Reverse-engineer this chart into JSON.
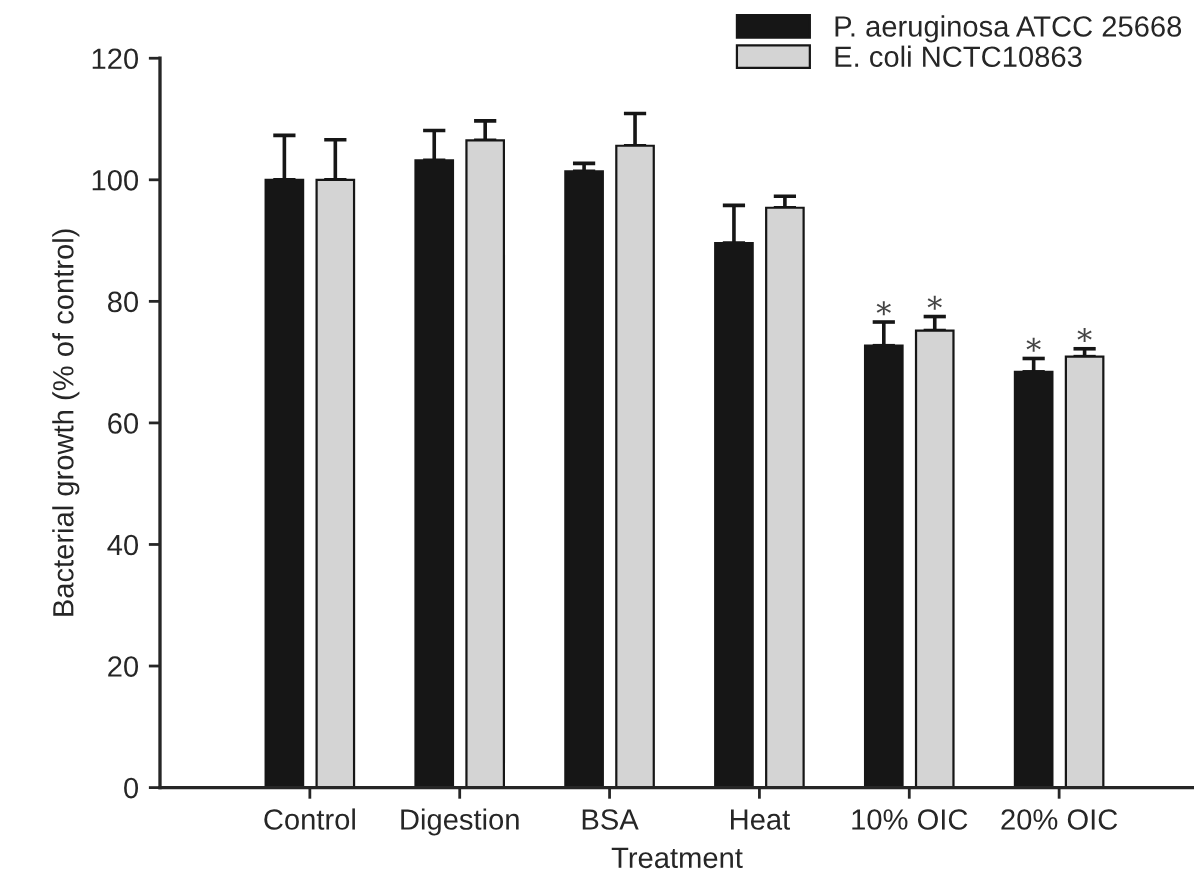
{
  "chart_data": {
    "type": "bar",
    "xlabel": "Treatment",
    "ylabel": "Bacterial growth (% of control)",
    "categories": [
      "Control",
      "Digestion",
      "BSA",
      "Heat",
      "10% OIC",
      "20% OIC"
    ],
    "series": [
      {
        "name": "P. aeruginosa ATCC 25668",
        "color": "#161616",
        "values": [
          100,
          103.2,
          101.4,
          89.6,
          72.7,
          68.4
        ],
        "errors": [
          [
            100,
            107.3
          ],
          [
            103.2,
            108.1
          ],
          [
            101.4,
            102.7
          ],
          [
            89.6,
            95.8
          ],
          [
            72.7,
            76.6
          ],
          [
            68.4,
            70.6
          ]
        ]
      },
      {
        "name": "E. coli NCTC10863",
        "color": "#d4d4d4",
        "values": [
          100,
          106.5,
          105.6,
          95.4,
          75.2,
          70.9
        ],
        "errors": [
          [
            100,
            106.6
          ],
          [
            106.5,
            109.7
          ],
          [
            105.6,
            110.9
          ],
          [
            95.4,
            97.3
          ],
          [
            75.2,
            77.5
          ],
          [
            70.9,
            72.2
          ]
        ]
      }
    ],
    "annotations": [
      {
        "text": "*",
        "x": "10% OIC",
        "y": 72.7
      },
      {
        "text": "*",
        "x": "10% OIC",
        "y": 75.2
      },
      {
        "text": "*",
        "x": "20% OIC",
        "y": 68.4
      },
      {
        "text": "*",
        "x": "20% OIC",
        "y": 70.9
      }
    ],
    "ylim": [
      0,
      120
    ],
    "yticks": [
      0,
      20,
      40,
      60,
      80,
      100,
      120
    ],
    "grid": false,
    "legend": "top right"
  }
}
